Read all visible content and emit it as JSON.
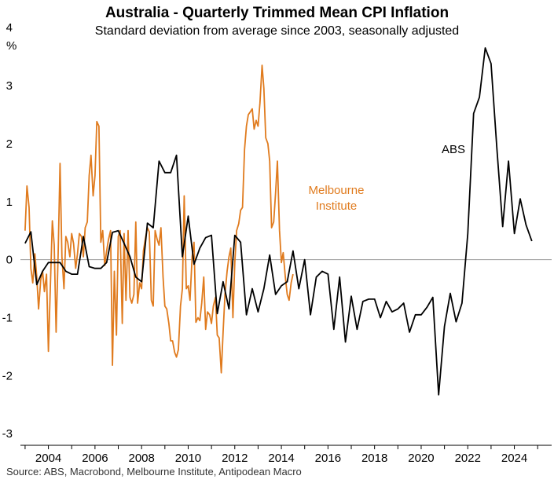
{
  "chart_data": {
    "type": "line",
    "title": "Australia - Quarterly Trimmed Mean CPI Inflation",
    "subtitle": "Standard deviation from average since 2003, seasonally adjusted",
    "ylabel": "%",
    "source": "Source: ABS, Macrobond, Melbourne Institute, Antipodean Macro",
    "xlim": [
      2002.8,
      2025.6
    ],
    "ylim": [
      -3.2,
      4.3
    ],
    "grid": false,
    "x_ticks": [
      2004,
      2006,
      2008,
      2010,
      2012,
      2014,
      2016,
      2018,
      2020,
      2022,
      2024
    ],
    "x_tick_labels": [
      "2004",
      "2006",
      "2008",
      "2010",
      "2012",
      "2014",
      "2016",
      "2018",
      "2020",
      "2022",
      "2024"
    ],
    "y_ticks": [
      4,
      3,
      2,
      1,
      0,
      -1,
      -2,
      -3
    ],
    "y_tick_labels": [
      "4",
      "3",
      "2",
      "1",
      "0",
      "-1",
      "-2",
      "-3"
    ],
    "series": [
      {
        "name": "ABS",
        "color": "#000000",
        "points": [
          [
            2003.0,
            0.28
          ],
          [
            2003.25,
            0.48
          ],
          [
            2003.5,
            -0.43
          ],
          [
            2003.75,
            -0.2
          ],
          [
            2004.0,
            -0.05
          ],
          [
            2004.25,
            -0.05
          ],
          [
            2004.5,
            -0.05
          ],
          [
            2004.75,
            -0.2
          ],
          [
            2005.0,
            -0.25
          ],
          [
            2005.25,
            -0.25
          ],
          [
            2005.5,
            0.4
          ],
          [
            2005.75,
            -0.12
          ],
          [
            2006.0,
            -0.15
          ],
          [
            2006.25,
            -0.15
          ],
          [
            2006.5,
            -0.05
          ],
          [
            2006.75,
            0.47
          ],
          [
            2007.0,
            0.5
          ],
          [
            2007.25,
            0.28
          ],
          [
            2007.5,
            0.05
          ],
          [
            2007.75,
            -0.3
          ],
          [
            2008.0,
            -0.38
          ],
          [
            2008.25,
            0.63
          ],
          [
            2008.5,
            0.55
          ],
          [
            2008.75,
            1.7
          ],
          [
            2009.0,
            1.5
          ],
          [
            2009.25,
            1.5
          ],
          [
            2009.5,
            1.8
          ],
          [
            2009.75,
            0.05
          ],
          [
            2010.0,
            0.75
          ],
          [
            2010.25,
            -0.08
          ],
          [
            2010.5,
            0.2
          ],
          [
            2010.75,
            0.38
          ],
          [
            2011.0,
            0.42
          ],
          [
            2011.25,
            -0.93
          ],
          [
            2011.5,
            -0.38
          ],
          [
            2011.75,
            -0.85
          ],
          [
            2012.0,
            0.42
          ],
          [
            2012.25,
            0.3
          ],
          [
            2012.5,
            -0.95
          ],
          [
            2012.75,
            -0.5
          ],
          [
            2013.0,
            -0.9
          ],
          [
            2013.25,
            -0.5
          ],
          [
            2013.5,
            0.08
          ],
          [
            2013.75,
            -0.6
          ],
          [
            2014.0,
            -0.45
          ],
          [
            2014.25,
            -0.38
          ],
          [
            2014.5,
            0.15
          ],
          [
            2014.75,
            -0.5
          ],
          [
            2015.0,
            0.0
          ],
          [
            2015.25,
            -0.95
          ],
          [
            2015.5,
            -0.3
          ],
          [
            2015.75,
            -0.2
          ],
          [
            2016.0,
            -0.25
          ],
          [
            2016.25,
            -1.2
          ],
          [
            2016.5,
            -0.3
          ],
          [
            2016.75,
            -1.42
          ],
          [
            2017.0,
            -0.63
          ],
          [
            2017.25,
            -1.2
          ],
          [
            2017.5,
            -0.72
          ],
          [
            2017.75,
            -0.68
          ],
          [
            2018.0,
            -0.68
          ],
          [
            2018.25,
            -1.0
          ],
          [
            2018.5,
            -0.72
          ],
          [
            2018.75,
            -0.9
          ],
          [
            2019.0,
            -0.85
          ],
          [
            2019.25,
            -0.75
          ],
          [
            2019.5,
            -1.25
          ],
          [
            2019.75,
            -0.95
          ],
          [
            2020.0,
            -0.95
          ],
          [
            2020.25,
            -0.82
          ],
          [
            2020.5,
            -0.65
          ],
          [
            2020.75,
            -2.33
          ],
          [
            2021.0,
            -1.15
          ],
          [
            2021.25,
            -0.58
          ],
          [
            2021.5,
            -1.07
          ],
          [
            2021.75,
            -0.75
          ],
          [
            2022.0,
            0.45
          ],
          [
            2022.25,
            2.52
          ],
          [
            2022.5,
            2.8
          ],
          [
            2022.75,
            3.65
          ],
          [
            2023.0,
            3.38
          ],
          [
            2023.25,
            1.92
          ],
          [
            2023.5,
            0.57
          ],
          [
            2023.75,
            1.7
          ],
          [
            2024.0,
            0.45
          ],
          [
            2024.25,
            1.05
          ],
          [
            2024.5,
            0.6
          ],
          [
            2024.75,
            0.32
          ]
        ]
      },
      {
        "name": "Melbourne Institute",
        "color": "#E07B1E",
        "points": [
          [
            2003.0,
            0.5
          ],
          [
            2003.08,
            1.27
          ],
          [
            2003.17,
            0.9
          ],
          [
            2003.25,
            -0.15
          ],
          [
            2003.33,
            -0.4
          ],
          [
            2003.42,
            0.1
          ],
          [
            2003.5,
            -0.3
          ],
          [
            2003.58,
            -0.85
          ],
          [
            2003.67,
            -0.35
          ],
          [
            2003.75,
            -0.2
          ],
          [
            2003.83,
            -0.55
          ],
          [
            2003.92,
            -0.25
          ],
          [
            2004.0,
            -1.58
          ],
          [
            2004.08,
            -0.5
          ],
          [
            2004.17,
            0.67
          ],
          [
            2004.25,
            0.25
          ],
          [
            2004.33,
            -1.25
          ],
          [
            2004.42,
            0.1
          ],
          [
            2004.5,
            1.66
          ],
          [
            2004.58,
            0.05
          ],
          [
            2004.67,
            -0.5
          ],
          [
            2004.75,
            0.4
          ],
          [
            2004.83,
            0.3
          ],
          [
            2004.92,
            0.05
          ],
          [
            2005.0,
            0.45
          ],
          [
            2005.08,
            0.28
          ],
          [
            2005.17,
            -0.15
          ],
          [
            2005.25,
            0.1
          ],
          [
            2005.33,
            0.45
          ],
          [
            2005.42,
            0.4
          ],
          [
            2005.5,
            0.05
          ],
          [
            2005.58,
            0.55
          ],
          [
            2005.67,
            0.65
          ],
          [
            2005.75,
            1.45
          ],
          [
            2005.83,
            1.8
          ],
          [
            2005.92,
            1.1
          ],
          [
            2006.0,
            1.45
          ],
          [
            2006.08,
            2.38
          ],
          [
            2006.17,
            2.3
          ],
          [
            2006.25,
            0.3
          ],
          [
            2006.33,
            0.5
          ],
          [
            2006.42,
            -0.1
          ],
          [
            2006.5,
            0.15
          ],
          [
            2006.58,
            0.35
          ],
          [
            2006.67,
            0.5
          ],
          [
            2006.75,
            -1.82
          ],
          [
            2006.83,
            -0.2
          ],
          [
            2006.92,
            -1.3
          ],
          [
            2007.0,
            0.4
          ],
          [
            2007.08,
            0.5
          ],
          [
            2007.17,
            -1.1
          ],
          [
            2007.25,
            0.45
          ],
          [
            2007.33,
            -0.7
          ],
          [
            2007.42,
            0.5
          ],
          [
            2007.5,
            -0.65
          ],
          [
            2007.58,
            -0.75
          ],
          [
            2007.67,
            -0.6
          ],
          [
            2007.75,
            0.65
          ],
          [
            2007.83,
            -0.75
          ],
          [
            2007.92,
            -0.4
          ],
          [
            2008.0,
            -0.5
          ],
          [
            2008.08,
            0.15
          ],
          [
            2008.17,
            0.38
          ],
          [
            2008.25,
            0.55
          ],
          [
            2008.33,
            0.48
          ],
          [
            2008.42,
            -0.7
          ],
          [
            2008.5,
            -0.8
          ],
          [
            2008.58,
            0.5
          ],
          [
            2008.67,
            0.35
          ],
          [
            2008.75,
            0.25
          ],
          [
            2008.83,
            0.55
          ],
          [
            2008.92,
            -0.3
          ],
          [
            2009.0,
            -0.8
          ],
          [
            2009.08,
            -0.85
          ],
          [
            2009.17,
            -1.1
          ],
          [
            2009.25,
            -1.4
          ],
          [
            2009.33,
            -1.4
          ],
          [
            2009.42,
            -1.6
          ],
          [
            2009.5,
            -1.68
          ],
          [
            2009.58,
            -1.55
          ],
          [
            2009.67,
            -0.8
          ],
          [
            2009.75,
            -0.5
          ],
          [
            2009.83,
            1.1
          ],
          [
            2009.92,
            -0.5
          ],
          [
            2010.0,
            -0.45
          ],
          [
            2010.08,
            -0.7
          ],
          [
            2010.17,
            0.05
          ],
          [
            2010.25,
            0.3
          ],
          [
            2010.33,
            -1.08
          ],
          [
            2010.42,
            -1.0
          ],
          [
            2010.5,
            -1.05
          ],
          [
            2010.58,
            -0.75
          ],
          [
            2010.67,
            -0.3
          ],
          [
            2010.75,
            -1.2
          ],
          [
            2010.83,
            -0.9
          ],
          [
            2010.92,
            -0.95
          ],
          [
            2011.0,
            -1.1
          ],
          [
            2011.08,
            -0.8
          ],
          [
            2011.17,
            -0.65
          ],
          [
            2011.25,
            -1.3
          ],
          [
            2011.33,
            -1.35
          ],
          [
            2011.42,
            -1.95
          ],
          [
            2011.5,
            -1.25
          ],
          [
            2011.58,
            -0.6
          ],
          [
            2011.67,
            -0.2
          ],
          [
            2011.75,
            0.05
          ],
          [
            2011.83,
            0.2
          ],
          [
            2011.92,
            -1.0
          ],
          [
            2012.0,
            -0.05
          ],
          [
            2012.08,
            0.5
          ],
          [
            2012.17,
            0.62
          ],
          [
            2012.25,
            0.85
          ],
          [
            2012.33,
            0.9
          ],
          [
            2012.42,
            1.9
          ],
          [
            2012.5,
            2.3
          ],
          [
            2012.58,
            2.5
          ],
          [
            2012.67,
            2.55
          ],
          [
            2012.75,
            2.6
          ],
          [
            2012.83,
            2.25
          ],
          [
            2012.92,
            2.4
          ],
          [
            2013.0,
            2.3
          ],
          [
            2013.08,
            2.7
          ],
          [
            2013.17,
            3.35
          ],
          [
            2013.25,
            2.95
          ],
          [
            2013.33,
            2.1
          ],
          [
            2013.42,
            2.0
          ],
          [
            2013.5,
            1.7
          ],
          [
            2013.58,
            0.55
          ],
          [
            2013.67,
            0.65
          ],
          [
            2013.75,
            1.15
          ],
          [
            2013.83,
            1.7
          ],
          [
            2013.92,
            0.5
          ],
          [
            2014.0,
            -0.05
          ],
          [
            2014.08,
            0.12
          ],
          [
            2014.17,
            -0.3
          ],
          [
            2014.25,
            -0.6
          ],
          [
            2014.33,
            -0.7
          ],
          [
            2014.42,
            -0.4
          ],
          [
            2014.5,
            -0.25
          ]
        ]
      }
    ],
    "annotations": [
      {
        "text": "ABS",
        "series": "ABS"
      },
      {
        "text": "Melbourne",
        "series": "Melbourne Institute"
      },
      {
        "text": "Institute",
        "series": "Melbourne Institute"
      }
    ]
  }
}
